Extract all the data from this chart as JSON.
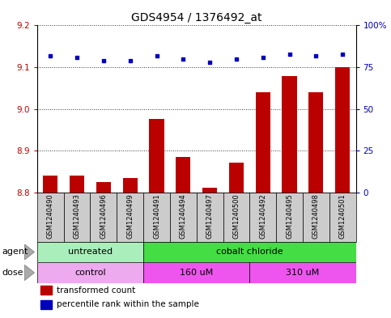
{
  "title": "GDS4954 / 1376492_at",
  "samples": [
    "GSM1240490",
    "GSM1240493",
    "GSM1240496",
    "GSM1240499",
    "GSM1240491",
    "GSM1240494",
    "GSM1240497",
    "GSM1240500",
    "GSM1240492",
    "GSM1240495",
    "GSM1240498",
    "GSM1240501"
  ],
  "transformed_count": [
    8.84,
    8.84,
    8.825,
    8.835,
    8.975,
    8.885,
    8.812,
    8.872,
    9.04,
    9.078,
    9.04,
    9.1
  ],
  "percentile_rank": [
    82,
    81,
    79,
    79,
    82,
    80,
    78,
    80,
    81,
    83,
    82,
    83
  ],
  "ylim_left": [
    8.8,
    9.2
  ],
  "ylim_right": [
    0,
    100
  ],
  "yticks_left": [
    8.8,
    8.9,
    9.0,
    9.1,
    9.2
  ],
  "yticks_right": [
    0,
    25,
    50,
    75,
    100
  ],
  "bar_color": "#bb0000",
  "dot_color": "#0000bb",
  "agent_groups": [
    {
      "label": "untreated",
      "start": 0,
      "end": 4,
      "color": "#aaeebb"
    },
    {
      "label": "cobalt chloride",
      "start": 4,
      "end": 12,
      "color": "#44dd44"
    }
  ],
  "dose_groups": [
    {
      "label": "control",
      "start": 0,
      "end": 4,
      "color": "#eeaaee"
    },
    {
      "label": "160 uM",
      "start": 4,
      "end": 8,
      "color": "#ee55ee"
    },
    {
      "label": "310 uM",
      "start": 8,
      "end": 12,
      "color": "#ee55ee"
    }
  ],
  "agent_label": "agent",
  "dose_label": "dose",
  "legend_bar_label": "transformed count",
  "legend_dot_label": "percentile rank within the sample",
  "sample_box_color": "#cccccc",
  "plot_bg": "#ffffff",
  "fig_bg": "#ffffff",
  "grid_color": "#333333",
  "title_fontsize": 10,
  "tick_fontsize": 7.5,
  "sample_fontsize": 6,
  "annot_fontsize": 8,
  "legend_fontsize": 7.5
}
